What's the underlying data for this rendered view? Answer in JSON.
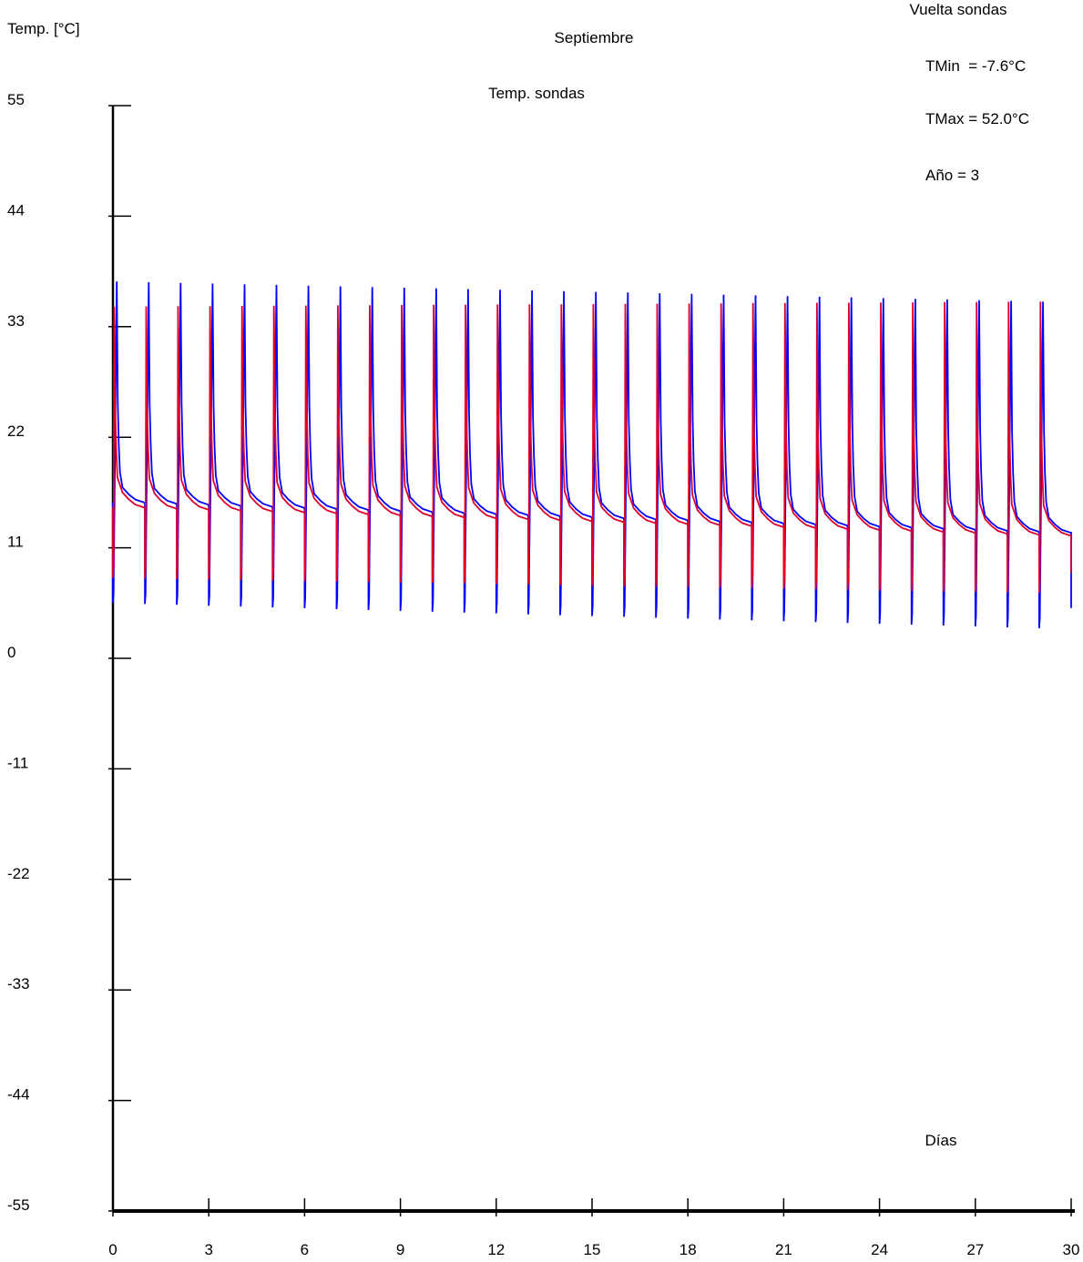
{
  "chart_data": {
    "type": "line",
    "month": "Septiembre",
    "subtitle": "Temp. sondas",
    "ylabel": "Temp. [°C]",
    "xlabel": "Días",
    "xlim": [
      0,
      30
    ],
    "ylim": [
      -55,
      55
    ],
    "xticks": [
      0,
      3,
      6,
      9,
      12,
      15,
      18,
      21,
      24,
      27,
      30
    ],
    "yticks": [
      55,
      44,
      33,
      22,
      11,
      0,
      -11,
      -22,
      -33,
      -44,
      -55
    ],
    "grid": false,
    "legend": "none",
    "info_panel": {
      "partial_heading": "Vuelta sondas",
      "tmin": "TMin  = -7.6°C",
      "tmax": "TMax = 52.0°C",
      "year": "Año = 3"
    },
    "series": [
      {
        "color": "#0000ff",
        "daily_pattern": {
          "base_before": 15.5,
          "base_after": 12.5,
          "dip_start": 5.5,
          "dip_end": 3.0,
          "spike_start": 37.5,
          "spike_end": 35.5,
          "spike_offset_day": 0.12
        }
      },
      {
        "color": "#e0002a",
        "daily_pattern": {
          "base_before": 15.0,
          "base_after": 12.2,
          "dip_start": 8.0,
          "dip_end": 6.5,
          "spike_start": 35.0,
          "spike_end": 35.5,
          "spike_offset_day": 0.04
        }
      }
    ]
  }
}
